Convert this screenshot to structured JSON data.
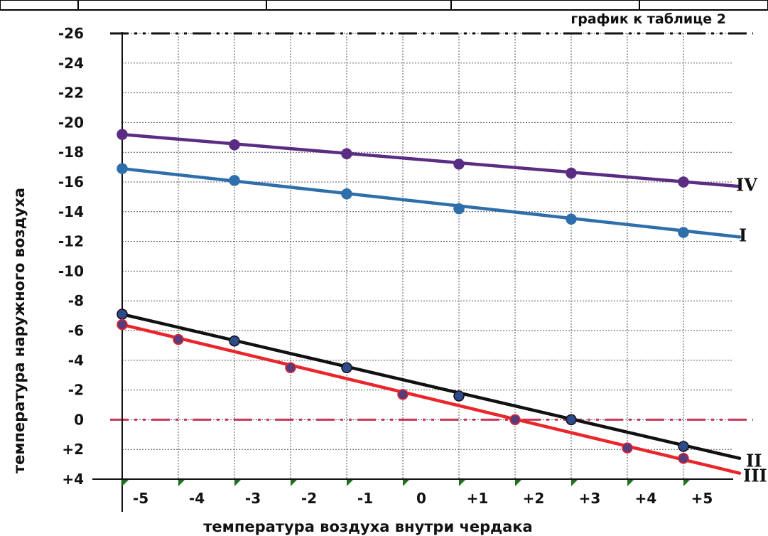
{
  "chart_data": {
    "type": "line",
    "title": "график к таблице 2",
    "xlabel": "температура воздуха внутри чердака",
    "ylabel": "температура наружного воздуха",
    "x_ticks": [
      -5,
      -4,
      -3,
      -2,
      -1,
      0,
      1,
      2,
      3,
      4,
      5
    ],
    "x_tick_labels": [
      "-5",
      "-4",
      "-3",
      "-2",
      "-1",
      "0",
      "+1",
      "+2",
      "+3",
      "+4",
      "+5"
    ],
    "y_ticks": [
      -26,
      -24,
      -22,
      -20,
      -18,
      -16,
      -14,
      -12,
      -10,
      -8,
      -6,
      -4,
      -2,
      0,
      2,
      4
    ],
    "y_tick_labels": [
      "-26",
      "-24",
      "-22",
      "-20",
      "-18",
      "-16",
      "-14",
      "-12",
      "-10",
      "-8",
      "-6",
      "-4",
      "-2",
      "0",
      "+2",
      "+4"
    ],
    "xlim": [
      -5,
      5
    ],
    "ylim": [
      -26,
      4
    ],
    "y_axis_inverted": true,
    "grid": true,
    "series": [
      {
        "name": "IV",
        "color": "#5b2c83",
        "points": [
          [
            -5,
            -19.2
          ],
          [
            -3,
            -18.5
          ],
          [
            -1,
            -17.9
          ],
          [
            1,
            -17.2
          ],
          [
            3,
            -16.6
          ],
          [
            5,
            -16.0
          ]
        ],
        "line_end": [
          6.0,
          -15.7
        ]
      },
      {
        "name": "I",
        "color": "#2e6fab",
        "points": [
          [
            -5,
            -16.9
          ],
          [
            -3,
            -16.1
          ],
          [
            -1,
            -15.2
          ],
          [
            1,
            -14.2
          ],
          [
            3,
            -13.5
          ],
          [
            5,
            -12.6
          ]
        ],
        "line_end": [
          6.0,
          -12.3
        ]
      },
      {
        "name": "II",
        "color": "#111111",
        "marker_color": "#2e4a8a",
        "points": [
          [
            -5,
            -7.1
          ],
          [
            -3,
            -5.3
          ],
          [
            -1,
            -3.5
          ],
          [
            1,
            -1.6
          ],
          [
            3,
            0.0
          ],
          [
            5,
            1.8
          ]
        ],
        "line_end": [
          6.0,
          2.6
        ]
      },
      {
        "name": "III",
        "color": "#e8262b",
        "marker_color": "#5a3a7a",
        "points": [
          [
            -5,
            -6.4
          ],
          [
            -4,
            -5.4
          ],
          [
            -2,
            -3.5
          ],
          [
            0,
            -1.7
          ],
          [
            2,
            0.0
          ],
          [
            4,
            1.9
          ],
          [
            5,
            2.6
          ]
        ],
        "line_end": [
          6.0,
          3.6
        ]
      }
    ],
    "reference_lines": [
      {
        "y": -26,
        "color": "#111111",
        "style": "dash-dot-dot"
      },
      {
        "y": 0,
        "color": "#c8385a",
        "style": "dash-dot-dot"
      }
    ]
  }
}
